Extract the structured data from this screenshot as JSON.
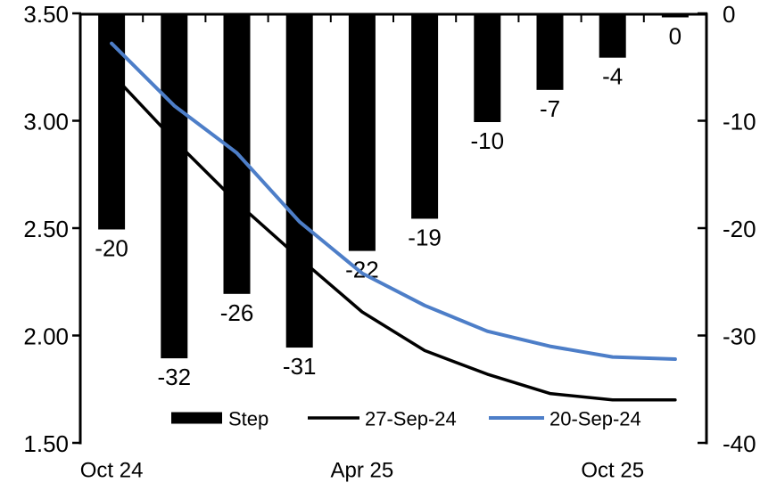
{
  "chart_data": {
    "type": "combo-bar-line",
    "title": "",
    "n_categories": 10,
    "x_tick_labels": [
      {
        "label": "Oct 24",
        "category_index": 0
      },
      {
        "label": "Apr 25",
        "category_index": 4
      },
      {
        "label": "Oct 25",
        "category_index": 8
      }
    ],
    "left_axis": {
      "min": 1.5,
      "max": 3.5,
      "ticks": [
        "3.50",
        "3.00",
        "2.50",
        "2.00",
        "1.50"
      ]
    },
    "right_axis": {
      "min": -40,
      "max": 0,
      "ticks": [
        "0",
        "-10",
        "-20",
        "-30",
        "-40"
      ]
    },
    "series": [
      {
        "name": "Step",
        "type": "bar",
        "axis": "right",
        "color": "#000000",
        "values": [
          -20,
          -32,
          -26,
          -31,
          -22,
          -19,
          -10,
          -7,
          -4,
          0
        ],
        "data_labels": [
          "-20",
          "-32",
          "-26",
          "-31",
          "-22",
          "-19",
          "-10",
          "-7",
          "-4",
          "0"
        ]
      },
      {
        "name": "27-Sep-24",
        "type": "line",
        "axis": "left",
        "color": "#000000",
        "values": [
          3.22,
          2.91,
          2.62,
          2.36,
          2.11,
          1.93,
          1.82,
          1.73,
          1.7,
          1.7
        ]
      },
      {
        "name": "20-Sep-24",
        "type": "line",
        "axis": "left",
        "color": "#4d7ec8",
        "values": [
          3.36,
          3.07,
          2.85,
          2.53,
          2.29,
          2.14,
          2.02,
          1.95,
          1.9,
          1.89
        ]
      }
    ],
    "legend": {
      "position": "bottom",
      "entries": [
        "Step",
        "27-Sep-24",
        "20-Sep-24"
      ]
    },
    "colors": {
      "bar": "#000000",
      "line_27sep": "#000000",
      "line_20sep": "#4d7ec8",
      "axis": "#000000",
      "background": "#ffffff"
    }
  }
}
